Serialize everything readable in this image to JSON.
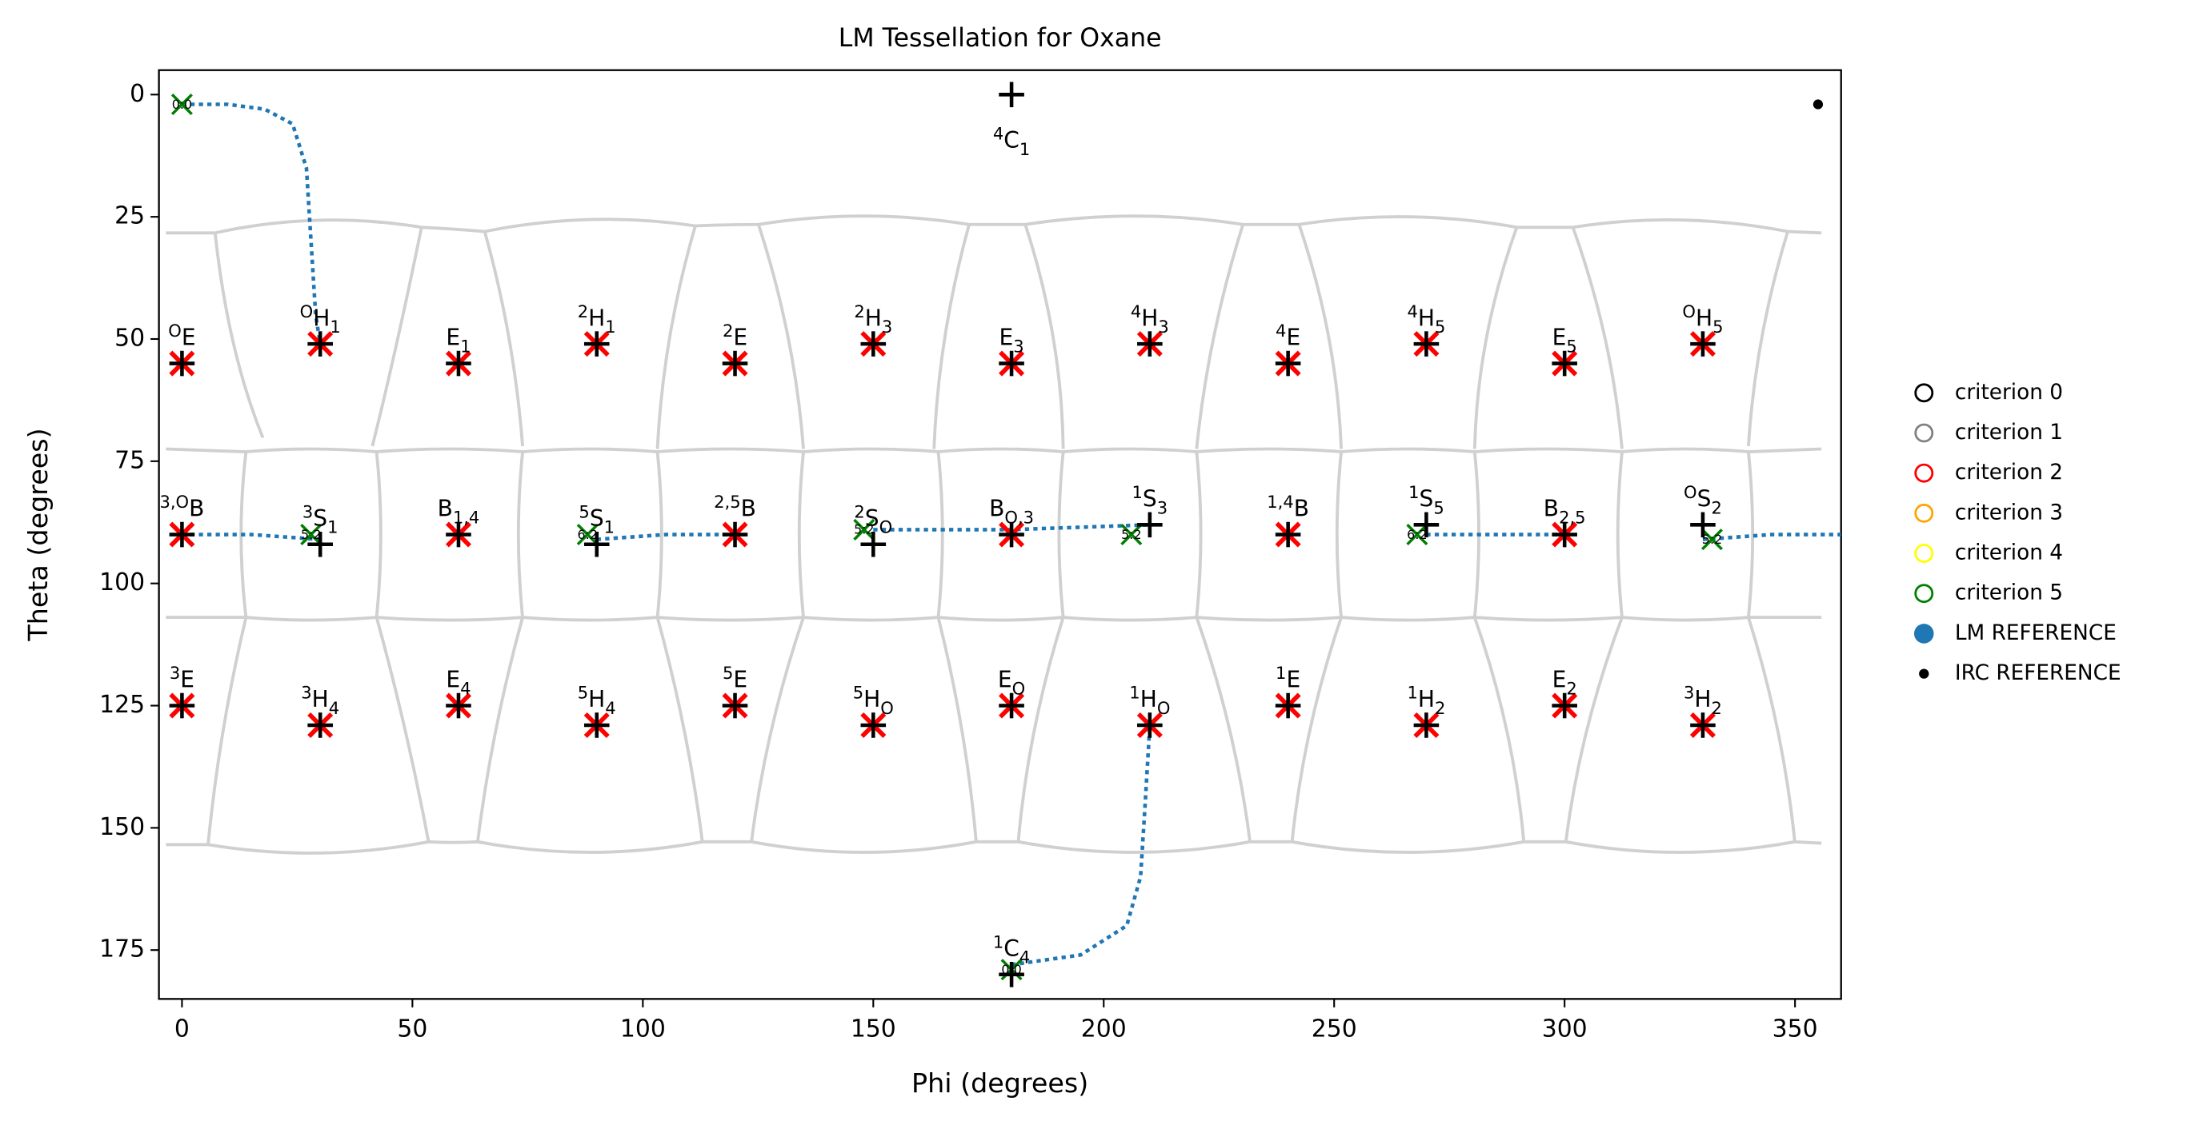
{
  "chart_data": {
    "type": "scatter",
    "title": "LM Tessellation for Oxane",
    "x_label": "Phi (degrees)",
    "y_label": "Theta (degrees)",
    "xlim": [
      -5,
      360
    ],
    "ylim": [
      185,
      -5
    ],
    "xticks": [
      0,
      50,
      100,
      150,
      200,
      250,
      300,
      350
    ],
    "yticks": [
      0,
      25,
      50,
      75,
      100,
      125,
      150,
      175
    ],
    "legend": "right",
    "series": [
      {
        "name": "criterion 0",
        "color": "black",
        "marker": "x",
        "x": [],
        "y": []
      },
      {
        "name": "criterion 1",
        "color": "gray",
        "marker": "x",
        "x": [],
        "y": []
      },
      {
        "name": "criterion 2",
        "color": "red",
        "marker": "x",
        "x": [
          0,
          30,
          60,
          90,
          120,
          150,
          180,
          210,
          240,
          270,
          300,
          330,
          0,
          60,
          120,
          180,
          240,
          300,
          0,
          30,
          60,
          90,
          120,
          150,
          180,
          210,
          240,
          270,
          300,
          330
        ],
        "y": [
          55,
          51,
          55,
          51,
          55,
          51,
          55,
          51,
          55,
          51,
          55,
          51,
          90,
          90,
          90,
          90,
          90,
          90,
          125,
          129,
          125,
          129,
          125,
          129,
          125,
          129,
          125,
          129,
          125,
          129
        ]
      },
      {
        "name": "criterion 3",
        "color": "orange",
        "marker": "x",
        "x": [],
        "y": []
      },
      {
        "name": "criterion 4",
        "color": "yellow",
        "marker": "x",
        "x": [],
        "y": []
      },
      {
        "name": "criterion 5",
        "color": "green",
        "marker": "x",
        "x": [
          0,
          28,
          88,
          148,
          206,
          268,
          332,
          180
        ],
        "y": [
          2,
          90,
          90,
          89,
          90,
          90,
          91,
          179
        ],
        "labels": [
          "0:0",
          "5:2",
          "6:2",
          "5:2",
          "5:2",
          "6:2",
          "5:2",
          "0:0"
        ]
      },
      {
        "name": "LM REFERENCE",
        "color": "#1f77b4",
        "marker_color": "black",
        "marker": "+",
        "x": [
          180,
          0,
          30,
          60,
          90,
          120,
          150,
          180,
          210,
          240,
          270,
          300,
          330,
          0,
          30,
          60,
          90,
          120,
          150,
          180,
          210,
          240,
          270,
          300,
          330,
          0,
          30,
          60,
          90,
          120,
          150,
          180,
          210,
          240,
          270,
          300,
          330,
          180
        ],
        "y": [
          0,
          55,
          51,
          55,
          51,
          55,
          51,
          55,
          51,
          55,
          51,
          55,
          51,
          90,
          92,
          90,
          92,
          90,
          92,
          90,
          88,
          90,
          88,
          90,
          88,
          125,
          129,
          125,
          129,
          125,
          129,
          125,
          129,
          125,
          129,
          125,
          129,
          180
        ],
        "labels": [
          {
            "sup": "4",
            "base": "C",
            "sub": "1"
          },
          {
            "sup": "O",
            "base": "E"
          },
          {
            "sup": "O",
            "base": "H",
            "sub": "1"
          },
          {
            "base": "E",
            "sub": "1"
          },
          {
            "sup": "2",
            "base": "H",
            "sub": "1"
          },
          {
            "sup": "2",
            "base": "E"
          },
          {
            "sup": "2",
            "base": "H",
            "sub": "3"
          },
          {
            "base": "E",
            "sub": "3"
          },
          {
            "sup": "4",
            "base": "H",
            "sub": "3"
          },
          {
            "sup": "4",
            "base": "E"
          },
          {
            "sup": "4",
            "base": "H",
            "sub": "5"
          },
          {
            "base": "E",
            "sub": "5"
          },
          {
            "sup": "O",
            "base": "H",
            "sub": "5"
          },
          {
            "sup": "3,O",
            "base": "B"
          },
          {
            "sup": "3",
            "base": "S",
            "sub": "1"
          },
          {
            "base": "B",
            "sub": "1,4"
          },
          {
            "sup": "5",
            "base": "S",
            "sub": "1"
          },
          {
            "sup": "2,5",
            "base": "B"
          },
          {
            "sup": "2",
            "base": "S",
            "sub": "O"
          },
          {
            "base": "B",
            "sub": "O,3"
          },
          {
            "sup": "1",
            "base": "S",
            "sub": "3"
          },
          {
            "sup": "1,4",
            "base": "B"
          },
          {
            "sup": "1",
            "base": "S",
            "sub": "5"
          },
          {
            "base": "B",
            "sub": "2,5"
          },
          {
            "sup": "O",
            "base": "S",
            "sub": "2"
          },
          {
            "sup": "3",
            "base": "E"
          },
          {
            "sup": "3",
            "base": "H",
            "sub": "4"
          },
          {
            "base": "E",
            "sub": "4"
          },
          {
            "sup": "5",
            "base": "H",
            "sub": "4"
          },
          {
            "sup": "5",
            "base": "E"
          },
          {
            "sup": "5",
            "base": "H",
            "sub": "O"
          },
          {
            "base": "E",
            "sub": "O"
          },
          {
            "sup": "1",
            "base": "H",
            "sub": "O"
          },
          {
            "sup": "1",
            "base": "E"
          },
          {
            "sup": "1",
            "base": "H",
            "sub": "2"
          },
          {
            "base": "E",
            "sub": "2"
          },
          {
            "sup": "3",
            "base": "H",
            "sub": "2"
          },
          {
            "sup": "1",
            "base": "C",
            "sub": "4"
          }
        ]
      },
      {
        "name": "IRC REFERENCE",
        "color": "black",
        "marker": "dot",
        "x": [
          355
        ],
        "y": [
          2
        ]
      }
    ],
    "irc_paths": {
      "color": "#1f77b4",
      "x": [
        0,
        10,
        18,
        24,
        27,
        28,
        29,
        30,
        null,
        0,
        15,
        30,
        null,
        90,
        105,
        120,
        null,
        150,
        180,
        210,
        null,
        270,
        285,
        300,
        null,
        330,
        345,
        360,
        null,
        180,
        195,
        205,
        208,
        209,
        210
      ],
      "y": [
        2,
        2,
        3,
        6,
        15,
        30,
        45,
        51,
        null,
        90,
        90,
        91,
        null,
        91,
        90,
        90,
        null,
        89,
        89,
        88,
        null,
        90,
        90,
        90,
        null,
        91,
        90,
        90,
        null,
        178,
        176,
        170,
        160,
        145,
        129
      ]
    }
  }
}
